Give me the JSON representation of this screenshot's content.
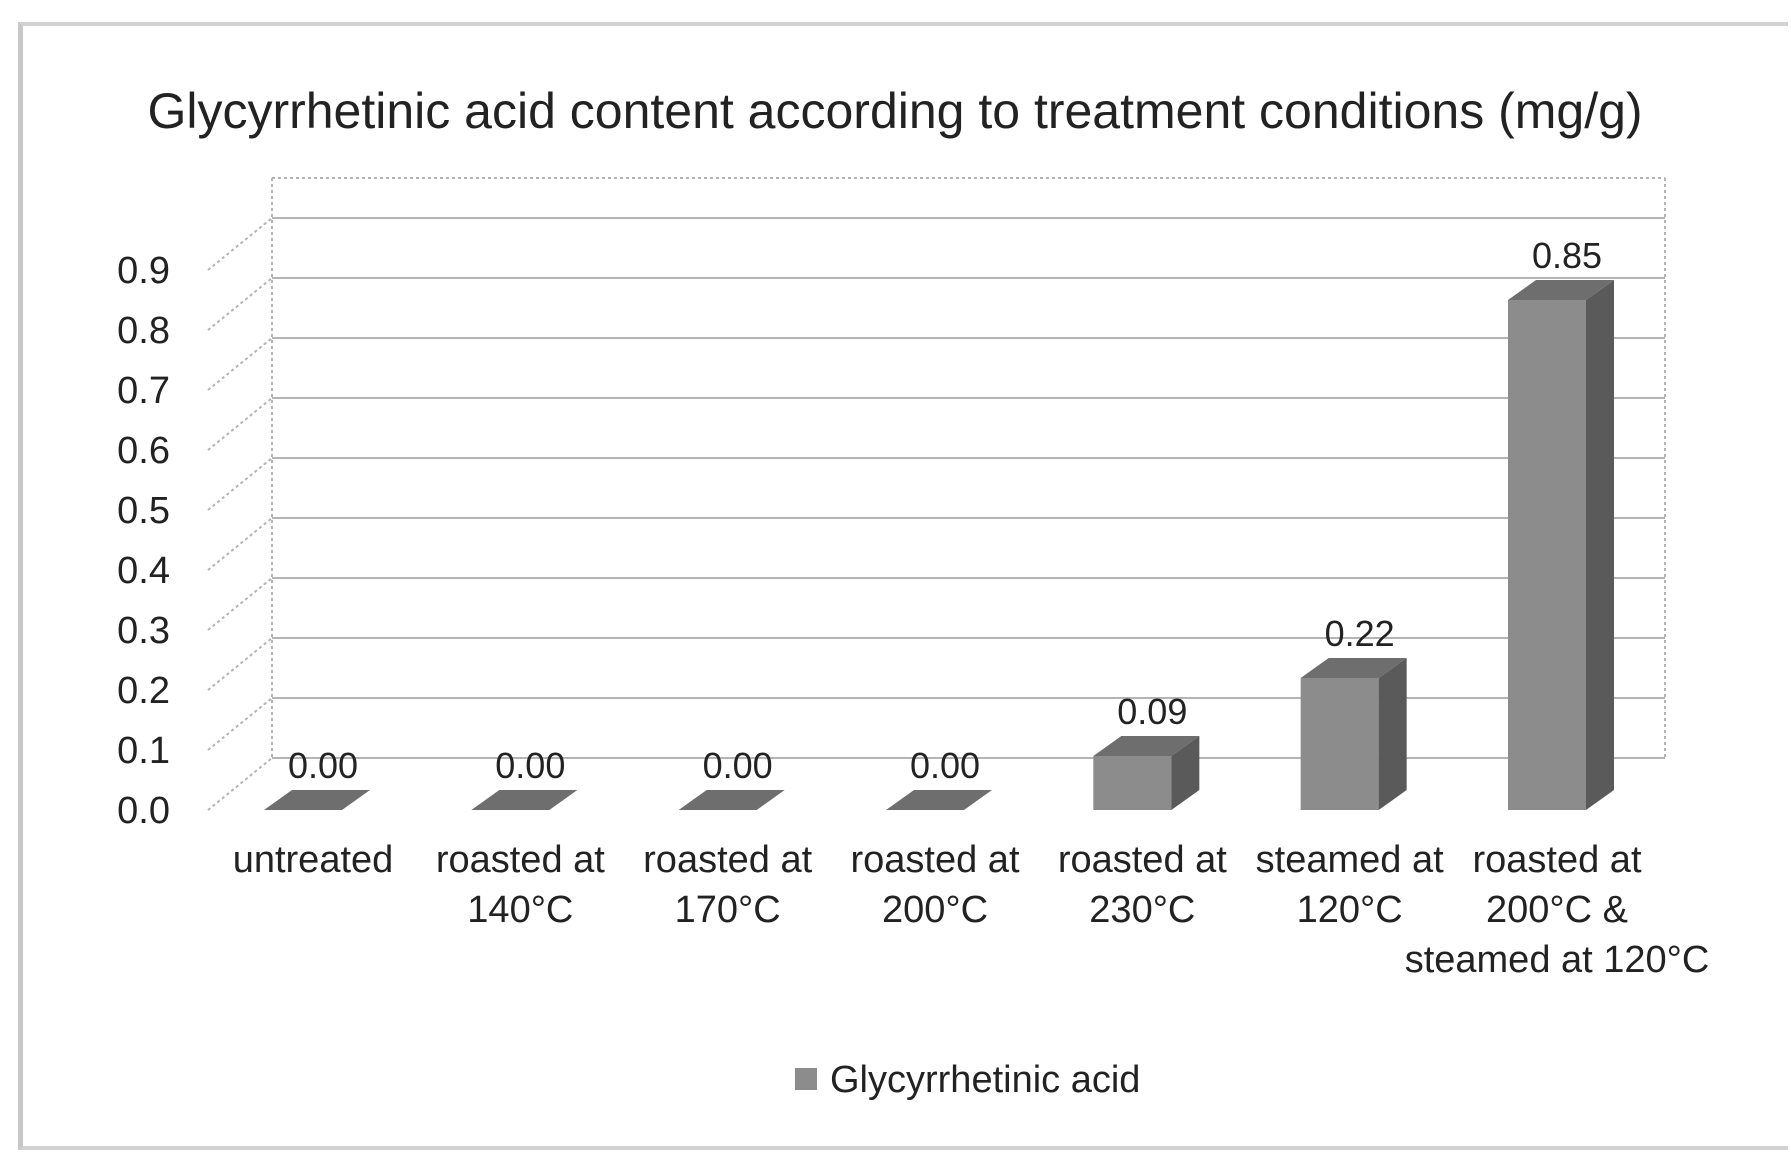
{
  "chart_data": {
    "type": "bar",
    "title": "Glycyrrhetinic acid content according to treatment conditions (mg/g)",
    "categories": [
      [
        "untreated"
      ],
      [
        "roasted at",
        "140°C"
      ],
      [
        "roasted at",
        "170°C"
      ],
      [
        "roasted at",
        "200°C"
      ],
      [
        "roasted at",
        "230°C"
      ],
      [
        "steamed at",
        "120°C"
      ],
      [
        "roasted at",
        "200°C &",
        "steamed at 120°C"
      ]
    ],
    "series": [
      {
        "name": "Glycyrrhetinic acid",
        "values": [
          0.0,
          0.0,
          0.0,
          0.0,
          0.09,
          0.22,
          0.85
        ]
      }
    ],
    "data_labels": [
      "0.00",
      "0.00",
      "0.00",
      "0.00",
      "0.09",
      "0.22",
      "0.85"
    ],
    "yticks": [
      "0.0",
      "0.1",
      "0.2",
      "0.3",
      "0.4",
      "0.5",
      "0.6",
      "0.7",
      "0.8",
      "0.9"
    ],
    "ylim": [
      0,
      0.9
    ],
    "grid": true,
    "legend_position": "bottom",
    "three_d": true,
    "colors": {
      "bar_front": "#8c8c8c",
      "bar_top": "#6e6e6e",
      "bar_side": "#5a5a5a",
      "grid": "#b4b4b4"
    }
  }
}
